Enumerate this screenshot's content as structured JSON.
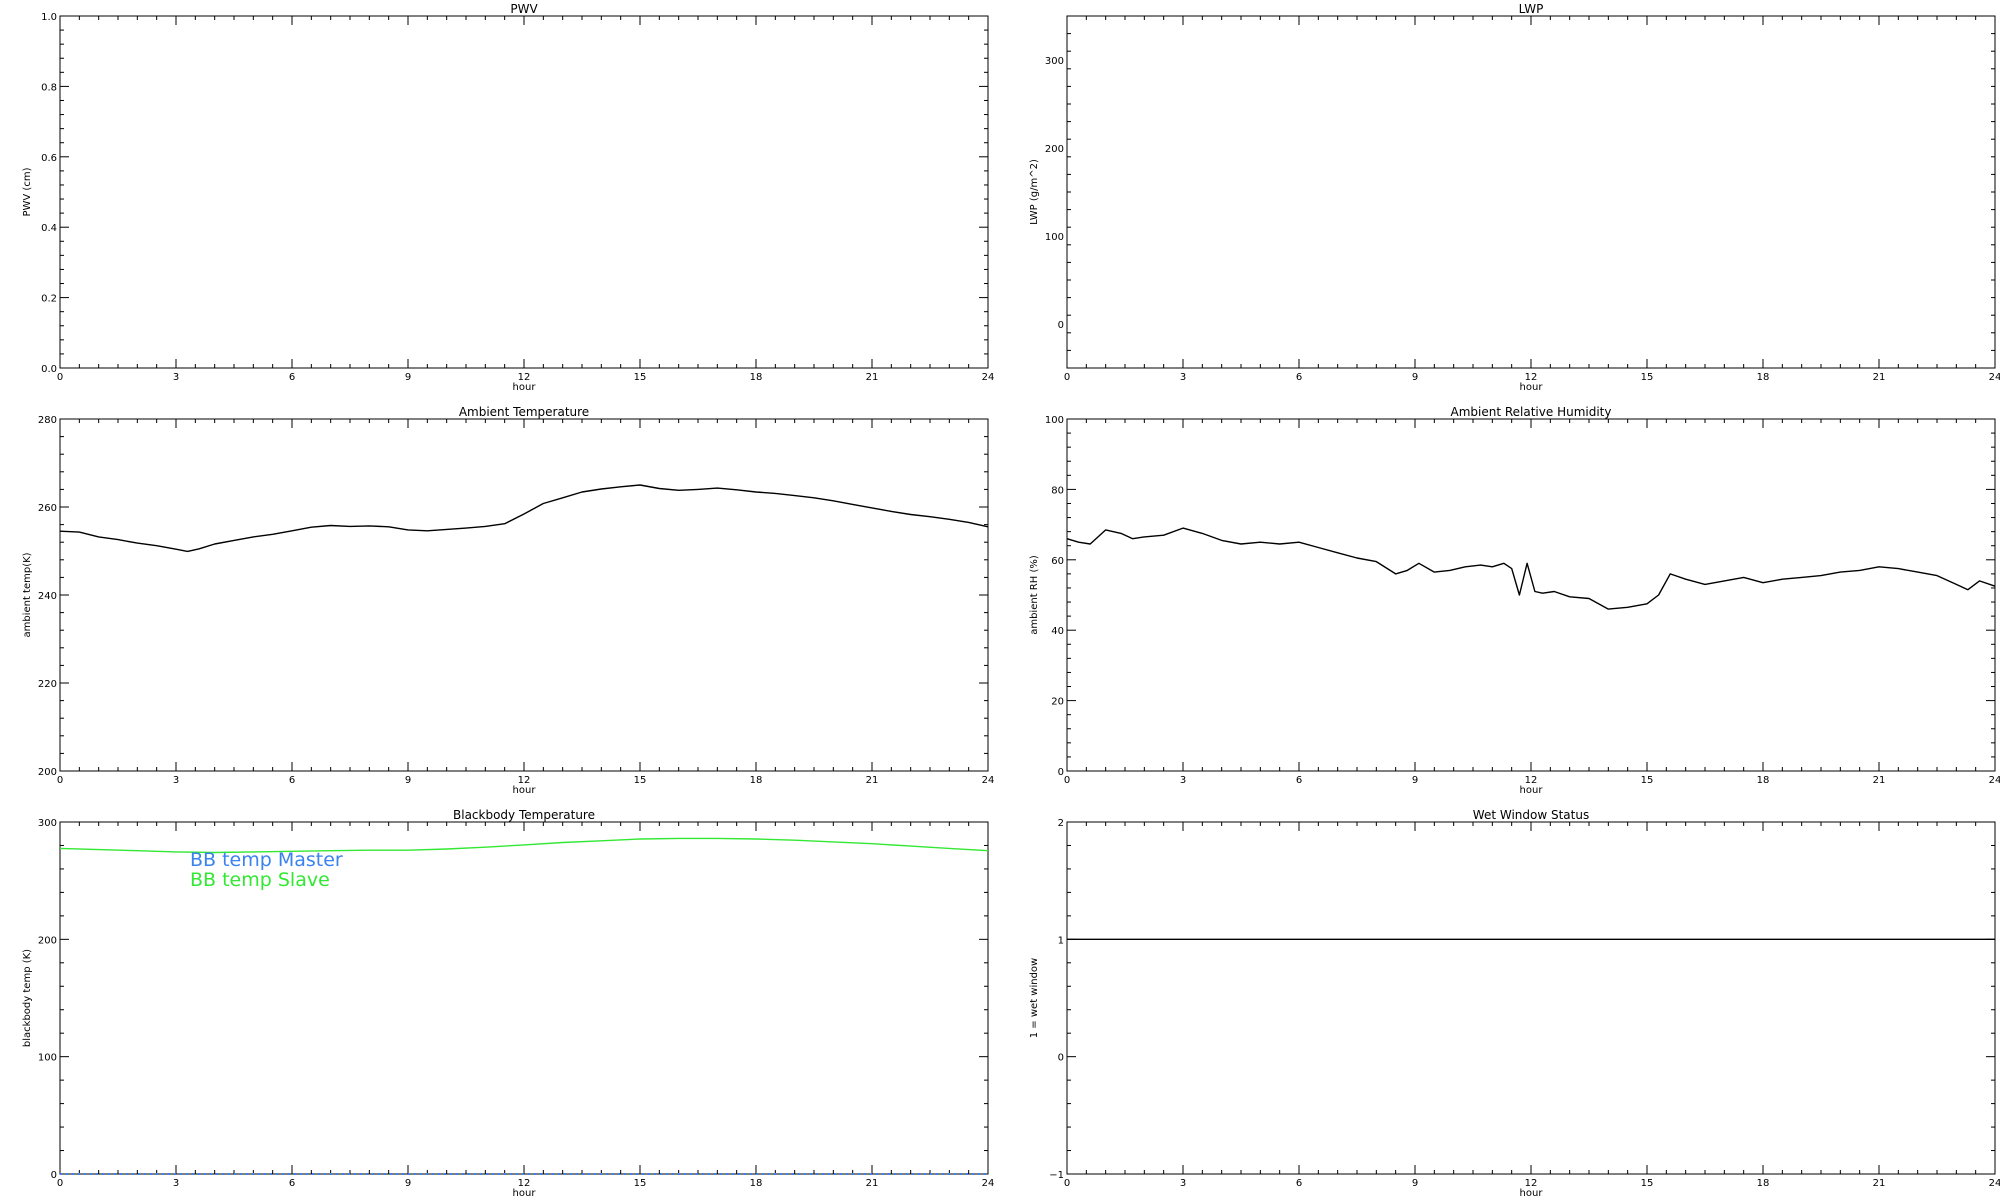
{
  "colors": {
    "master": "#3a82f0",
    "slave": "#33e833",
    "line": "#000000",
    "background": "#ffffff"
  },
  "chart_data": [
    {
      "type": "line",
      "title": "PWV",
      "xlabel": "hour",
      "ylabel": "PWV (cm)",
      "xlim": [
        0,
        24
      ],
      "ylim": [
        0,
        1.0
      ],
      "xticks": [
        0,
        3,
        6,
        9,
        12,
        15,
        18,
        21,
        24
      ],
      "yticks": [
        "0.0",
        "0.2",
        "0.4",
        "0.6",
        "0.8",
        "1.0"
      ],
      "ytick_values": [
        0,
        0.2,
        0.4,
        0.6,
        0.8,
        1.0
      ],
      "series": []
    },
    {
      "type": "line",
      "title": "LWP",
      "xlabel": "hour",
      "ylabel": "LWP (g/m^2)",
      "xlim": [
        0,
        24
      ],
      "ylim": [
        -50,
        350
      ],
      "xticks": [
        0,
        3,
        6,
        9,
        12,
        15,
        18,
        21,
        24
      ],
      "yticks": [
        "0",
        "100",
        "200",
        "300"
      ],
      "ytick_values": [
        0,
        100,
        200,
        300
      ],
      "series": []
    },
    {
      "type": "line",
      "title": "Ambient Temperature",
      "xlabel": "hour",
      "ylabel": "ambient temp(K)",
      "xlim": [
        0,
        24
      ],
      "ylim": [
        200,
        280
      ],
      "xticks": [
        0,
        3,
        6,
        9,
        12,
        15,
        18,
        21,
        24
      ],
      "yticks": [
        "200",
        "220",
        "240",
        "260",
        "280"
      ],
      "ytick_values": [
        200,
        220,
        240,
        260,
        280
      ],
      "series": [
        {
          "color": "#000000",
          "x": [
            0,
            0.5,
            1,
            1.5,
            2,
            2.5,
            3,
            3.3,
            3.6,
            4,
            4.5,
            5,
            5.5,
            6,
            6.5,
            7,
            7.5,
            8,
            8.5,
            9,
            9.5,
            10,
            10.5,
            11,
            11.5,
            12,
            12.5,
            13,
            13.5,
            14,
            14.5,
            15,
            15.5,
            16,
            16.5,
            17,
            17.5,
            18,
            18.5,
            19,
            19.5,
            20,
            20.5,
            21,
            21.5,
            22,
            22.5,
            23,
            23.5,
            24
          ],
          "y": [
            254.5,
            254.3,
            253.2,
            252.6,
            251.8,
            251.2,
            250.4,
            249.9,
            250.5,
            251.6,
            252.4,
            253.2,
            253.8,
            254.6,
            255.4,
            255.8,
            255.6,
            255.7,
            255.5,
            254.8,
            254.6,
            254.9,
            255.2,
            255.6,
            256.2,
            258.4,
            260.8,
            262.1,
            263.4,
            264.1,
            264.6,
            265.0,
            264.2,
            263.8,
            264.0,
            264.3,
            263.9,
            263.4,
            263.1,
            262.6,
            262.1,
            261.4,
            260.6,
            259.8,
            259.0,
            258.3,
            257.8,
            257.2,
            256.5,
            255.5
          ]
        }
      ]
    },
    {
      "type": "line",
      "title": "Ambient Relative Humidity",
      "xlabel": "hour",
      "ylabel": "ambient RH (%)",
      "xlim": [
        0,
        24
      ],
      "ylim": [
        0,
        100
      ],
      "xticks": [
        0,
        3,
        6,
        9,
        12,
        15,
        18,
        21,
        24
      ],
      "yticks": [
        "0",
        "20",
        "40",
        "60",
        "80",
        "100"
      ],
      "ytick_values": [
        0,
        20,
        40,
        60,
        80,
        100
      ],
      "series": [
        {
          "color": "#000000",
          "x": [
            0,
            0.3,
            0.6,
            1.0,
            1.4,
            1.7,
            2.0,
            2.5,
            3.0,
            3.5,
            4.0,
            4.5,
            5.0,
            5.5,
            6.0,
            6.5,
            7.0,
            7.5,
            8.0,
            8.5,
            8.8,
            9.1,
            9.5,
            9.9,
            10.3,
            10.7,
            11.0,
            11.3,
            11.5,
            11.7,
            11.9,
            12.1,
            12.3,
            12.6,
            13.0,
            13.5,
            14.0,
            14.5,
            15.0,
            15.3,
            15.6,
            16.0,
            16.5,
            17.0,
            17.5,
            18.0,
            18.5,
            19.0,
            19.5,
            20.0,
            20.5,
            21.0,
            21.5,
            22.0,
            22.5,
            23.0,
            23.3,
            23.6,
            24.0
          ],
          "y": [
            66,
            65,
            64.5,
            68.5,
            67.5,
            66,
            66.5,
            67,
            69,
            67.5,
            65.5,
            64.5,
            65,
            64.5,
            65,
            63.5,
            62,
            60.5,
            59.5,
            56,
            57,
            59,
            56.5,
            57,
            58,
            58.5,
            58,
            59,
            57.5,
            50,
            59,
            51,
            50.5,
            51,
            49.5,
            49,
            46,
            46.5,
            47.5,
            50,
            56,
            54.5,
            53,
            54,
            55,
            53.5,
            54.5,
            55,
            55.5,
            56.5,
            57,
            58,
            57.5,
            56.5,
            55.5,
            53,
            51.5,
            54,
            52.5
          ]
        }
      ]
    },
    {
      "type": "line",
      "title": "Blackbody Temperature",
      "xlabel": "hour",
      "ylabel": "blackbody temp (K)",
      "xlim": [
        0,
        24
      ],
      "ylim": [
        0,
        300
      ],
      "xticks": [
        0,
        3,
        6,
        9,
        12,
        15,
        18,
        21,
        24
      ],
      "yticks": [
        "0",
        "100",
        "200",
        "300"
      ],
      "ytick_values": [
        0,
        100,
        200,
        300
      ],
      "legend": [
        "BB temp Master",
        "BB temp Slave"
      ],
      "series": [
        {
          "name": "BB temp Master",
          "color": "#3a82f0",
          "style": "dotted",
          "x": [
            0,
            24
          ],
          "y": [
            0,
            0
          ]
        },
        {
          "name": "BB temp Slave",
          "color": "#33e833",
          "x": [
            0,
            1,
            2,
            3,
            4,
            5,
            6,
            7,
            8,
            9,
            10,
            11,
            12,
            13,
            14,
            15,
            16,
            17,
            18,
            19,
            20,
            21,
            22,
            23,
            24
          ],
          "y": [
            277.5,
            276.5,
            275.5,
            274.5,
            274,
            274.5,
            275,
            275.5,
            276,
            276,
            277,
            278.5,
            280.5,
            282.5,
            284,
            285.5,
            286,
            286,
            285.5,
            284.5,
            283,
            281.5,
            279.5,
            277.5,
            275.5
          ]
        }
      ]
    },
    {
      "type": "line",
      "title": "Wet Window Status",
      "xlabel": "hour",
      "ylabel": "1 = wet window",
      "xlim": [
        0,
        24
      ],
      "ylim": [
        -1,
        2
      ],
      "xticks": [
        0,
        3,
        6,
        9,
        12,
        15,
        18,
        21,
        24
      ],
      "yticks": [
        "−1",
        "0",
        "1",
        "2"
      ],
      "ytick_values": [
        -1,
        0,
        1,
        2
      ],
      "series": [
        {
          "color": "#000000",
          "x": [
            0,
            24
          ],
          "y": [
            1,
            1
          ]
        }
      ]
    }
  ]
}
